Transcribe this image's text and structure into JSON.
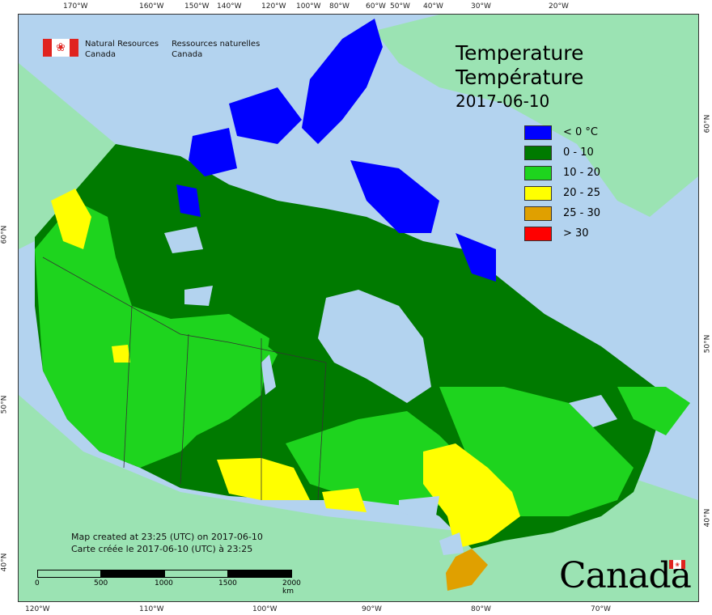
{
  "map_title": "Temperature",
  "map_title_fr": "Température",
  "map_date": "2017-06-10",
  "agency": {
    "en_line1": "Natural Resources",
    "en_line2": "Canada",
    "fr_line1": "Ressources naturelles",
    "fr_line2": "Canada"
  },
  "legend": [
    {
      "label": "< 0 °C",
      "color": "#0000ff"
    },
    {
      "label": "0 - 10",
      "color": "#007a00"
    },
    {
      "label": "10 - 20",
      "color": "#1ed41e"
    },
    {
      "label": "20 - 25",
      "color": "#ffff00"
    },
    {
      "label": "25 - 30",
      "color": "#e0a000"
    },
    {
      "label": "> 30",
      "color": "#ff0000"
    }
  ],
  "credits": {
    "en": "Map created at 23:25 (UTC) on 2017-06-10",
    "fr": "Carte créée le 2017-06-10 (UTC) à 23:25"
  },
  "scale": {
    "labels": [
      "0",
      "500",
      "1000",
      "1500",
      "2000 km"
    ]
  },
  "wordmark": "Canada",
  "graticule": {
    "top": [
      "170°W",
      "160°W",
      "150°W",
      "140°W",
      "120°W",
      "100°W",
      "80°W",
      "60°W",
      "50°W",
      "40°W",
      "30°W",
      "20°W"
    ],
    "bottom": [
      "120°W",
      "110°W",
      "100°W",
      "90°W",
      "80°W",
      "70°W"
    ],
    "left": [
      "60°N",
      "50°N",
      "40°N"
    ],
    "right": [
      "60°N",
      "50°N",
      "40°N"
    ]
  },
  "colors": {
    "ocean": "#b3d3ef",
    "land_other": "#9be3b3",
    "lakes": "#b3d3ef"
  }
}
